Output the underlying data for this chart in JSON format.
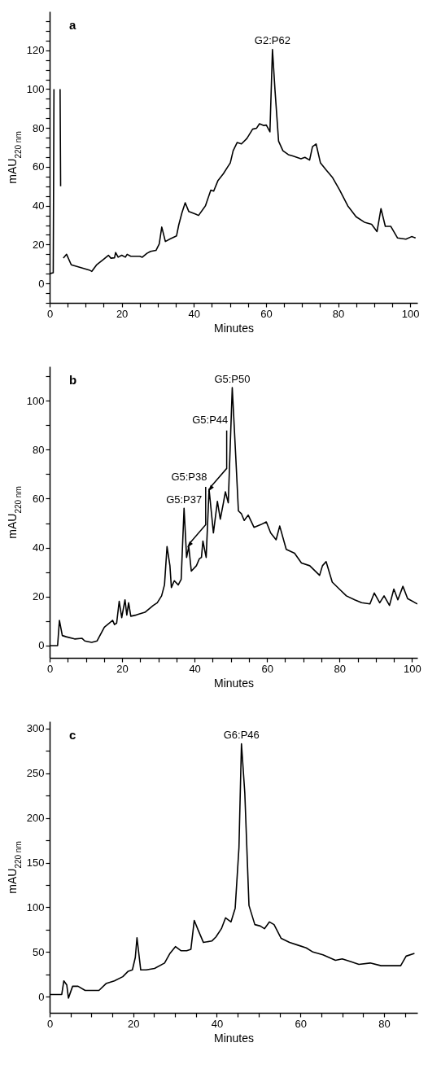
{
  "chart_data": [
    {
      "type": "line",
      "xlabel": "Minutes",
      "ylabel": "mAU$_{220 nm}$",
      "annotations": [
        "a",
        {
          "text": "G2:P62",
          "x": 61.8,
          "y": 120.4
        }
      ],
      "xlim": [
        0,
        102
      ],
      "ylim": [
        -10,
        140
      ],
      "xticks": [
        0,
        {
          "value": 5,
          "label": null
        },
        {
          "value": 10,
          "label": null
        },
        {
          "value": 15,
          "label": null
        },
        20,
        {
          "value": 25,
          "label": null
        },
        {
          "value": 30,
          "label": null
        },
        {
          "value": 35,
          "label": null
        },
        40,
        {
          "value": 45,
          "label": null
        },
        {
          "value": 50,
          "label": null
        },
        {
          "value": 55,
          "label": null
        },
        60,
        {
          "value": 65,
          "label": null
        },
        {
          "value": 70,
          "label": null
        },
        {
          "value": 75,
          "label": null
        },
        80,
        {
          "value": 85,
          "label": null
        },
        {
          "value": 90,
          "label": null
        },
        {
          "value": 95,
          "label": null
        },
        100
      ],
      "yticks": [
        {
          "value": -10,
          "label": null
        },
        {
          "value": -5,
          "label": null
        },
        0,
        {
          "value": 5,
          "label": null
        },
        {
          "value": 10,
          "label": null
        },
        {
          "value": 15,
          "label": null
        },
        20,
        {
          "value": 25,
          "label": null
        },
        {
          "value": 30,
          "label": null
        },
        {
          "value": 35,
          "label": null
        },
        40,
        {
          "value": 45,
          "label": null
        },
        {
          "value": 50,
          "label": null
        },
        {
          "value": 55,
          "label": null
        },
        60,
        {
          "value": 65,
          "label": null
        },
        {
          "value": 70,
          "label": null
        },
        {
          "value": 75,
          "label": null
        },
        80,
        {
          "value": 85,
          "label": null
        },
        {
          "value": 90,
          "label": null
        },
        {
          "value": 95,
          "label": null
        },
        100,
        {
          "value": 105,
          "label": null
        },
        {
          "value": 110,
          "label": null
        },
        {
          "value": 115,
          "label": null
        },
        120,
        {
          "value": 125,
          "label": null
        },
        {
          "value": 130,
          "label": null
        },
        {
          "value": 135,
          "label": null
        }
      ],
      "x": [
        0,
        1,
        1.2,
        1.5,
        2.5,
        2.9,
        3.05,
        3.2,
        3.7,
        3.8,
        4.7,
        6,
        11,
        11.7,
        13,
        15,
        16.3,
        17,
        18,
        18.3,
        19,
        20,
        21,
        21.5,
        22.5,
        25,
        25.7,
        27,
        28,
        29.5,
        30.4,
        31.1,
        32.1,
        33.5,
        35.2,
        35.8,
        36.7,
        37.6,
        38.6,
        40.5,
        41.3,
        43.2,
        44.7,
        45.5,
        46.7,
        48.2,
        49.4,
        50.1,
        50.9,
        52,
        53.2,
        54.7,
        56.3,
        57.4,
        58.2,
        59.3,
        60.1,
        61.1,
        61.8,
        62.5,
        63.5,
        64.7,
        66.2,
        67.4,
        69.7,
        70.8,
        72.1,
        72.9,
        73.9,
        75.1,
        76.6,
        78.5,
        80.4,
        82.7,
        85,
        87.3,
        89.3,
        90.8,
        91.9,
        93.1,
        94.6,
        96.5,
        98.8,
        100.4,
        101.5
      ],
      "series": [
        {
          "color": "#000000",
          "values": [
            5,
            5.5,
            100,
            null,
            null,
            100,
            50,
            null,
            null,
            13,
            15,
            9.6,
            6.9,
            6.2,
            9.5,
            12.5,
            14.5,
            13,
            13.2,
            15.9,
            13.5,
            14.5,
            13.5,
            15,
            14,
            14,
            13.5,
            15.5,
            16.5,
            17,
            20.3,
            29,
            21.6,
            23,
            24.5,
            30,
            36.4,
            41.5,
            37,
            35.7,
            35,
            39.9,
            48,
            47.5,
            53,
            56.5,
            60,
            62,
            68.3,
            72.5,
            71.8,
            74.6,
            79.4,
            79.9,
            82.2,
            81.3,
            81.5,
            78,
            120.4,
            99.6,
            73.2,
            68.3,
            66.3,
            65.6,
            64.2,
            64.9,
            63.5,
            70.4,
            71.8,
            62.1,
            58.6,
            54.4,
            48.2,
            39.9,
            34.3,
            31.5,
            30.4,
            26.7,
            38.5,
            29.4,
            29.4,
            23.4,
            22.8,
            24.1,
            23.4
          ]
        }
      ]
    },
    {
      "type": "line",
      "xlabel": "Minutes",
      "ylabel": "mAU$_{220 nm}$",
      "annotations": [
        "b",
        {
          "text": "G5:P50",
          "x": 50.4,
          "y": 105.3
        },
        {
          "text": "G5:P37",
          "x": 37.1,
          "y": 56.1
        },
        {
          "text": "G5:P38",
          "x": 38.5,
          "y": 41
        },
        {
          "text": "G5:P44",
          "x": 44.3,
          "y": 64
        }
      ],
      "xlim": [
        0,
        101.5
      ],
      "ylim": [
        -5,
        114
      ],
      "xticks": [
        0,
        {
          "value": 5,
          "label": null
        },
        {
          "value": 10,
          "label": null
        },
        {
          "value": 15,
          "label": null
        },
        20,
        {
          "value": 25,
          "label": null
        },
        {
          "value": 30,
          "label": null
        },
        {
          "value": 35,
          "label": null
        },
        40,
        {
          "value": 45,
          "label": null
        },
        {
          "value": 50,
          "label": null
        },
        {
          "value": 55,
          "label": null
        },
        60,
        {
          "value": 65,
          "label": null
        },
        {
          "value": 70,
          "label": null
        },
        {
          "value": 75,
          "label": null
        },
        80,
        {
          "value": 85,
          "label": null
        },
        {
          "value": 90,
          "label": null
        },
        {
          "value": 95,
          "label": null
        },
        100
      ],
      "yticks": [
        0,
        {
          "value": 10,
          "label": null
        },
        20,
        {
          "value": 30,
          "label": null
        },
        40,
        {
          "value": 50,
          "label": null
        },
        60,
        {
          "value": 70,
          "label": null
        },
        80,
        {
          "value": 90,
          "label": null
        },
        100,
        {
          "value": 110,
          "label": null
        }
      ],
      "x": [
        0,
        2.2,
        2.7,
        3.5,
        4.6,
        6.9,
        8.9,
        9.7,
        11.6,
        13.1,
        15.1,
        17.4,
        17.9,
        18.5,
        19.2,
        19.9,
        20.8,
        21.3,
        21.8,
        22.4,
        23.9,
        26.3,
        28.6,
        29.7,
        30.9,
        31.7,
        32.4,
        33.2,
        33.6,
        34.4,
        35.5,
        36.3,
        37.1,
        37.8,
        38.4,
        39.1,
        40.5,
        41.3,
        41.9,
        42.3,
        43.2,
        44,
        45.2,
        46.3,
        47.1,
        47.9,
        48.5,
        49.3,
        50.4,
        51.4,
        52.1,
        52.9,
        53.7,
        54.8,
        56.4,
        58.3,
        59.8,
        61,
        62.5,
        63.5,
        65.3,
        67.6,
        69.5,
        71.8,
        74.5,
        75.3,
        76.3,
        78,
        80.3,
        81.9,
        84.2,
        86.1,
        88.4,
        89.6,
        91.1,
        92.3,
        93.8,
        95,
        96.1,
        97.5,
        98.8,
        101.5
      ],
      "series": [
        {
          "color": "#000000",
          "values": [
            0,
            0,
            10.3,
            4.1,
            3.6,
            2.7,
            3,
            1.9,
            1.3,
            1.9,
            7.5,
            10.3,
            8.6,
            9.2,
            18.1,
            11.4,
            18.7,
            12.5,
            17.5,
            12,
            12.5,
            13.6,
            16.4,
            17.5,
            20.3,
            24.8,
            40.4,
            32.6,
            23.7,
            26.5,
            24.8,
            27,
            56.1,
            36,
            40.4,
            30.4,
            32.6,
            35.4,
            36,
            42.7,
            36,
            63.9,
            46,
            58.9,
            51.6,
            57.8,
            62.8,
            58.3,
            105.3,
            76.2,
            55,
            53.9,
            51.1,
            53.3,
            48.3,
            49.4,
            50.5,
            46,
            43.2,
            48.8,
            39.3,
            37.7,
            33.7,
            32.6,
            28.7,
            32.6,
            34.3,
            25.9,
            22.6,
            20.3,
            18.7,
            17.5,
            17,
            21.5,
            17.5,
            20.3,
            16.4,
            23.1,
            18.7,
            24.2,
            19.2,
            17
          ]
        }
      ]
    },
    {
      "type": "line",
      "xlabel": "Minutes",
      "ylabel": "mAU$_{220 nm}$",
      "annotations": [
        "c",
        {
          "text": "G6:P46",
          "x": 45.9,
          "y": 283
        }
      ],
      "xlim": [
        0,
        88
      ],
      "ylim": [
        -18,
        308
      ],
      "xticks": [
        0,
        {
          "value": 5,
          "label": null
        },
        {
          "value": 10,
          "label": null
        },
        {
          "value": 15,
          "label": null
        },
        20,
        {
          "value": 25,
          "label": null
        },
        {
          "value": 30,
          "label": null
        },
        {
          "value": 35,
          "label": null
        },
        40,
        {
          "value": 45,
          "label": null
        },
        {
          "value": 50,
          "label": null
        },
        {
          "value": 55,
          "label": null
        },
        60,
        {
          "value": 65,
          "label": null
        },
        {
          "value": 70,
          "label": null
        },
        {
          "value": 75,
          "label": null
        },
        80,
        {
          "value": 85,
          "label": null
        }
      ],
      "yticks": [
        0,
        {
          "value": 25,
          "label": null
        },
        50,
        {
          "value": 75,
          "label": null
        },
        100,
        {
          "value": 125,
          "label": null
        },
        150,
        {
          "value": 175,
          "label": null
        },
        200,
        {
          "value": 225,
          "label": null
        },
        250,
        {
          "value": 275,
          "label": null
        },
        300
      ],
      "x": [
        0,
        2.9,
        3.4,
        4.1,
        4.5,
        5.5,
        6.8,
        8.5,
        10.2,
        11.8,
        13.5,
        15.5,
        17.5,
        18.8,
        19.8,
        20.5,
        20.9,
        21.8,
        23.1,
        25.1,
        27.5,
        28.8,
        30.1,
        31.4,
        32.8,
        33.8,
        34.6,
        35.4,
        36.8,
        38.8,
        39.8,
        41.1,
        42.1,
        43.4,
        44.4,
        45.3,
        45.9,
        46.7,
        47.7,
        49.1,
        50.4,
        51.4,
        52.6,
        53.7,
        55.4,
        57.4,
        59.4,
        61.4,
        63,
        65.4,
        68.4,
        70,
        72,
        74,
        76.7,
        79.3,
        84,
        85.3,
        87.3
      ],
      "series": [
        {
          "color": "#000000",
          "values": [
            2.5,
            2.5,
            17.8,
            13.2,
            -1.5,
            11.7,
            11.7,
            7,
            7,
            7,
            14.7,
            17.8,
            22.4,
            28.5,
            30,
            43.9,
            66,
            30,
            30,
            31.6,
            37.7,
            48.5,
            56.1,
            51.5,
            51.5,
            53.1,
            85.3,
            76.1,
            60.7,
            62.3,
            66.9,
            76.1,
            88.3,
            83.7,
            99.1,
            166.6,
            283,
            227.9,
            102.1,
            80.7,
            79.1,
            76.1,
            83.7,
            80.7,
            65.3,
            60.7,
            57.7,
            54.6,
            50,
            46.9,
            40.8,
            42.3,
            39.3,
            36.2,
            37.7,
            34.7,
            34.7,
            45.4,
            48.5
          ]
        }
      ]
    }
  ]
}
